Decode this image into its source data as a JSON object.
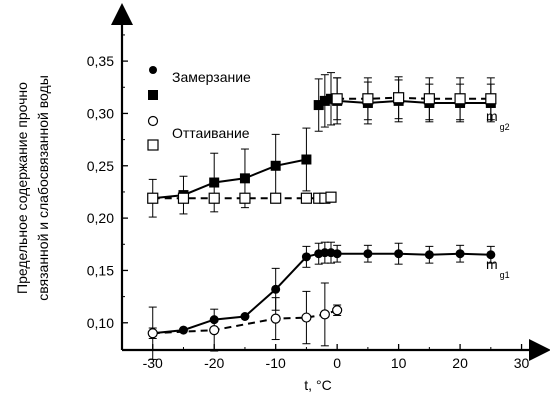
{
  "chart_data": {
    "type": "scatter",
    "xlabel": "t, °C",
    "ylabel_line1": "Предельное содержание прочно",
    "ylabel_line2": "связанной и слабосвязанной воды",
    "xlim": [
      -35,
      33
    ],
    "ylim": [
      0.074,
      0.395
    ],
    "x_ticks": [
      -30,
      -20,
      -10,
      0,
      10,
      20,
      30
    ],
    "x_tick_labels": [
      "-30",
      "-20",
      "-10",
      "0",
      "10",
      "20",
      "30"
    ],
    "y_ticks": [
      0.1,
      0.15,
      0.2,
      0.25,
      0.3,
      0.35
    ],
    "y_tick_labels": [
      "0,10",
      "0,15",
      "0,20",
      "0,25",
      "0,30",
      "0,35"
    ],
    "legend": [
      "Замерзание",
      "Замерзание",
      "Оттаивание",
      "Оттаивание"
    ],
    "curve_labels": [
      {
        "main": "m",
        "sub": "g2"
      },
      {
        "main": "m",
        "sub": "g1"
      }
    ],
    "series": [
      {
        "marker": "filled-square",
        "curve": "solid",
        "x": [
          -30,
          -25,
          -20,
          -15,
          -10,
          -5,
          -3,
          -2,
          -1,
          0,
          5,
          10,
          15,
          20,
          25
        ],
        "y": [
          0.219,
          0.222,
          0.234,
          0.238,
          0.25,
          0.256,
          0.308,
          0.312,
          0.314,
          0.312,
          0.31,
          0.312,
          0.31,
          0.31,
          0.31
        ],
        "err": [
          0.018,
          0.018,
          0.028,
          0.028,
          0.03,
          0.03,
          0.025,
          0.025,
          0.025,
          0.022,
          0.02,
          0.02,
          0.018,
          0.018,
          0.018
        ]
      },
      {
        "marker": "open-square",
        "curve": "dashed",
        "x": [
          -30,
          -25,
          -20,
          -15,
          -10,
          -5,
          -3,
          -2,
          -1,
          0,
          5,
          10,
          15,
          20,
          25
        ],
        "y": [
          0.219,
          0.219,
          0.219,
          0.219,
          0.219,
          0.219,
          0.219,
          0.219,
          0.22,
          0.314,
          0.314,
          0.315,
          0.314,
          0.314,
          0.314
        ],
        "err": [
          0.004,
          0.004,
          0.004,
          0.004,
          0.004,
          0.004,
          0.004,
          0.004,
          0.004,
          0.02,
          0.02,
          0.02,
          0.02,
          0.02,
          0.02
        ]
      },
      {
        "marker": "filled-circle",
        "curve": "solid",
        "x": [
          -30,
          -25,
          -20,
          -15,
          -10,
          -5,
          -3,
          -2,
          -1,
          0,
          5,
          10,
          15,
          20,
          25
        ],
        "y": [
          0.09,
          0.093,
          0.103,
          0.106,
          0.132,
          0.163,
          0.166,
          0.167,
          0.167,
          0.166,
          0.166,
          0.166,
          0.165,
          0.166,
          0.165
        ],
        "err": [
          0.025,
          0.02,
          0.02,
          0.02,
          0.02,
          0.01,
          0.01,
          0.01,
          0.01,
          0.008,
          0.008,
          0.01,
          0.008,
          0.008,
          0.008
        ],
        "show_err": [
          true,
          false,
          false,
          false,
          true,
          true,
          true,
          true,
          true,
          true,
          true,
          true,
          true,
          true,
          true
        ]
      },
      {
        "marker": "open-circle",
        "curve": "dashed",
        "x": [
          -30,
          -20,
          -10,
          -5,
          -2,
          0
        ],
        "y": [
          0.09,
          0.093,
          0.104,
          0.105,
          0.108,
          0.112
        ],
        "err": [
          0.005,
          0.02,
          0.02,
          0.025,
          0.03,
          0.005
        ]
      }
    ]
  }
}
